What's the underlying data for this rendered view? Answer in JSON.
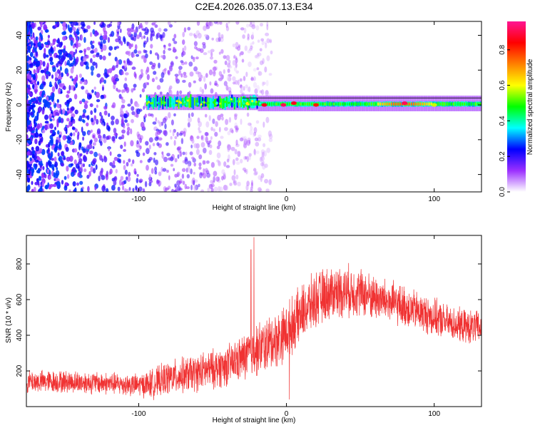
{
  "title": "C2E4.2026.035.07.13.E34",
  "chart_data": [
    {
      "type": "heatmap",
      "name": "spectrogram",
      "xlabel": "Height of straight line (km)",
      "ylabel": "Frequency (Hz)",
      "xlim": [
        -176,
        132
      ],
      "ylim": [
        -50,
        48
      ],
      "x_ticks": [
        -100,
        0,
        100
      ],
      "x_tick_labels": [
        "-100",
        "0",
        "100"
      ],
      "y_ticks": [
        -40,
        -20,
        0,
        20,
        40
      ],
      "y_tick_labels": [
        "-40",
        "-20",
        "0",
        "20",
        "40"
      ],
      "colorbar": {
        "label": "Normalized spectral amplitude",
        "range": [
          0,
          0.96
        ],
        "ticks": [
          0.0,
          0.2,
          0.4,
          0.6,
          0.8
        ],
        "tick_labels": [
          "0.0",
          "0.2",
          "0.4",
          "0.6",
          "0.8"
        ],
        "colormap": [
          "#ffffff",
          "#9b30ff",
          "#0000ff",
          "#00ffff",
          "#00ff00",
          "#ffff00",
          "#ff8000",
          "#ff0000",
          "#ff1493"
        ]
      },
      "features": {
        "noise_region_x": [
          -176,
          -40
        ],
        "signal_start_x": -95,
        "signal_band_freq": [
          -2,
          4
        ],
        "strong_points": [
          {
            "x": -15,
            "y": 0,
            "v": 0.9
          },
          {
            "x": -2,
            "y": 0,
            "v": 0.95
          },
          {
            "x": 5,
            "y": 1,
            "v": 0.9
          },
          {
            "x": 20,
            "y": 0,
            "v": 0.85
          },
          {
            "x": 80,
            "y": 1,
            "v": 0.95
          },
          {
            "x": 100,
            "y": 0,
            "v": 0.6
          }
        ]
      }
    },
    {
      "type": "line",
      "name": "snr",
      "xlabel": "Height of straight line (km)",
      "ylabel": "SNR (10 * v/v)",
      "xlim": [
        -176,
        132
      ],
      "ylim": [
        0,
        960
      ],
      "x_ticks": [
        -100,
        0,
        100
      ],
      "x_tick_labels": [
        "-100",
        "0",
        "100"
      ],
      "y_ticks": [
        200,
        400,
        600,
        800
      ],
      "y_tick_labels": [
        "200",
        "400",
        "600",
        "800"
      ],
      "color": "#f03232",
      "envelope": {
        "x": [
          -176,
          -150,
          -120,
          -100,
          -90,
          -80,
          -60,
          -40,
          -30,
          -25,
          -20,
          -10,
          0,
          10,
          20,
          30,
          40,
          50,
          60,
          80,
          100,
          110,
          120,
          132
        ],
        "baseline": [
          140,
          140,
          130,
          120,
          130,
          160,
          190,
          230,
          270,
          300,
          320,
          360,
          420,
          520,
          600,
          640,
          650,
          640,
          610,
          560,
          500,
          470,
          450,
          440
        ],
        "spread": [
          60,
          60,
          60,
          60,
          80,
          90,
          100,
          110,
          120,
          140,
          140,
          150,
          150,
          150,
          150,
          140,
          140,
          130,
          120,
          110,
          100,
          90,
          90,
          90
        ]
      },
      "spikes": [
        {
          "x": -22,
          "y": 950
        },
        {
          "x": -24,
          "y": 880
        },
        {
          "x": 2,
          "y": 40
        }
      ]
    }
  ]
}
